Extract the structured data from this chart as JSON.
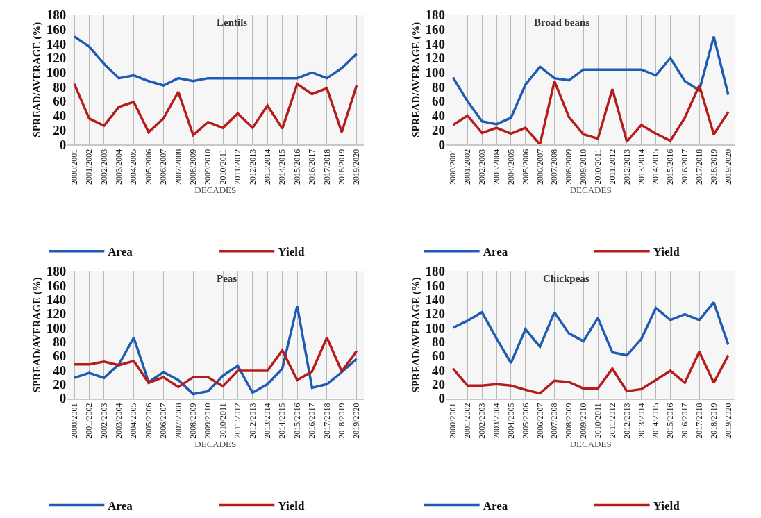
{
  "chart_data": [
    {
      "type": "line",
      "title": "Lentils",
      "xlabel": "DECADES",
      "ylabel": "SPREAD/AVERAGE (%)",
      "categories": [
        "2000/2001",
        "2001/2002",
        "2002/2003",
        "2003/2004",
        "2004/2005",
        "2005/2006",
        "2006/2007",
        "2007/2008",
        "2008/2009",
        "2009/2010",
        "2010/2011",
        "2011/2012",
        "2012/2013",
        "2013/2014",
        "2014/2015",
        "2015/2016",
        "2016/2017",
        "2017/2018",
        "2018/2019",
        "2019/2020"
      ],
      "ylim": [
        0,
        180
      ],
      "yticks": [
        0,
        20,
        40,
        60,
        80,
        100,
        120,
        140,
        160,
        180
      ],
      "grid": "x",
      "legend": "bottom",
      "series": [
        {
          "name": "Area",
          "color": "#1f5bb0",
          "values": [
            150,
            136,
            112,
            92,
            96,
            88,
            82,
            92,
            88,
            92,
            92,
            92,
            92,
            92,
            92,
            92,
            100,
            92,
            106,
            126
          ]
        },
        {
          "name": "Yield",
          "color": "#b51c1c",
          "values": [
            84,
            36,
            26,
            52,
            59,
            17,
            36,
            73,
            13,
            31,
            23,
            43,
            23,
            54,
            22,
            84,
            70,
            78,
            17,
            82
          ]
        }
      ]
    },
    {
      "type": "line",
      "title": "Broad beans",
      "xlabel": "DECADES",
      "ylabel": "SPREAD/AVERAGE (%)",
      "categories": [
        "2000/2001",
        "2001/2002",
        "2002/2003",
        "2003/2004",
        "2004/2005",
        "2005/2006",
        "2006/2007",
        "2007/2008",
        "2008/2009",
        "2009/2010",
        "2010/2011",
        "2011/2012",
        "2012/2013",
        "2013/2014",
        "2014/2015",
        "2015/2016",
        "2016/2017",
        "2017/2018",
        "2018/2019",
        "2019/2020"
      ],
      "ylim": [
        0,
        180
      ],
      "yticks": [
        0,
        20,
        40,
        60,
        80,
        100,
        120,
        140,
        160,
        180
      ],
      "grid": "x",
      "legend": "bottom",
      "series": [
        {
          "name": "Area",
          "color": "#1f5bb0",
          "values": [
            93,
            60,
            32,
            28,
            37,
            83,
            108,
            92,
            89,
            104,
            104,
            104,
            104,
            104,
            96,
            120,
            88,
            75,
            150,
            69
          ]
        },
        {
          "name": "Yield",
          "color": "#b51c1c",
          "values": [
            27,
            40,
            16,
            23,
            15,
            23,
            0,
            88,
            38,
            14,
            8,
            77,
            4,
            27,
            15,
            5,
            37,
            82,
            14,
            45
          ]
        }
      ]
    },
    {
      "type": "line",
      "title": "Peas",
      "xlabel": "DECADES",
      "ylabel": "SPREAD/AVERAGE (%)",
      "categories": [
        "2000/2001",
        "2001/2002",
        "2002/2003",
        "2003/2004",
        "2004/2005",
        "2005/2006",
        "2006/2007",
        "2007/2008",
        "2008/2009",
        "2009/2010",
        "2010/2011",
        "2011/2012",
        "2012/2013",
        "2013/2014",
        "2014/2015",
        "2015/2016",
        "2016/2017",
        "2017/2018",
        "2018/2019",
        "2019/2020"
      ],
      "ylim": [
        0,
        180
      ],
      "yticks": [
        0,
        20,
        40,
        60,
        80,
        100,
        120,
        140,
        160,
        180
      ],
      "grid": "x",
      "legend": "bottom",
      "series": [
        {
          "name": "Area",
          "color": "#1f5bb0",
          "values": [
            29,
            36,
            29,
            48,
            86,
            23,
            37,
            26,
            6,
            10,
            32,
            46,
            8,
            20,
            42,
            131,
            15,
            20,
            37,
            56
          ]
        },
        {
          "name": "Yield",
          "color": "#b51c1c",
          "values": [
            48,
            48,
            52,
            47,
            53,
            22,
            30,
            16,
            30,
            30,
            17,
            39,
            39,
            39,
            68,
            26,
            38,
            86,
            38,
            67
          ]
        }
      ]
    },
    {
      "type": "line",
      "title": "Chickpeas",
      "xlabel": "DECADES",
      "ylabel": "SPREAD/AVERAGE (%)",
      "categories": [
        "2000/2001",
        "2001/2002",
        "2002/2003",
        "2003/2004",
        "2004/2005",
        "2005/2006",
        "2006/2007",
        "2007/2008",
        "2008/2009",
        "2009/2010",
        "2010/2011",
        "2011/2012",
        "2012/2013",
        "2013/2014",
        "2014/2015",
        "2015/2016",
        "2016/2017",
        "2017/2018",
        "2018/2019",
        "2019/2020"
      ],
      "ylim": [
        0,
        180
      ],
      "yticks": [
        0,
        20,
        40,
        60,
        80,
        100,
        120,
        140,
        160,
        180
      ],
      "grid": "x",
      "legend": "bottom",
      "series": [
        {
          "name": "Area",
          "color": "#1f5bb0",
          "values": [
            100,
            110,
            122,
            85,
            50,
            98,
            73,
            122,
            92,
            81,
            114,
            65,
            61,
            84,
            128,
            111,
            119,
            111,
            136,
            76
          ]
        },
        {
          "name": "Yield",
          "color": "#b51c1c",
          "values": [
            42,
            18,
            18,
            20,
            18,
            12,
            7,
            25,
            23,
            14,
            14,
            42,
            10,
            13,
            26,
            39,
            22,
            66,
            22,
            61
          ]
        }
      ]
    }
  ]
}
